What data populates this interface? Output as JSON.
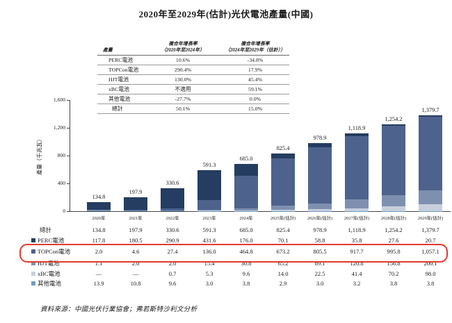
{
  "title": "2020年至2029年(估計)光伏電池產量(中國)",
  "cagr_table": {
    "col_headers": [
      "產量",
      "複合年增長率\n（2020年至2024年）",
      "複合年增長率\n（2024年至2029年（估計））"
    ],
    "rows": [
      {
        "label": "PERC電池",
        "cagr1": "10.6%",
        "cagr2": "-34.8%"
      },
      {
        "label": "TOPCon電池",
        "cagr1": "290.4%",
        "cagr2": "17.9%"
      },
      {
        "label": "HJT電池",
        "cagr1": "130.0%",
        "cagr2": "45.4%"
      },
      {
        "label": "xBC電池",
        "cagr1": "不適用",
        "cagr2": "59.1%"
      },
      {
        "label": "其他電池",
        "cagr1": "-27.7%",
        "cagr2": "0.0%"
      },
      {
        "label": "總計",
        "cagr1": "50.1%",
        "cagr2": "15.0%"
      }
    ]
  },
  "chart_data": {
    "type": "bar",
    "stacked": true,
    "title": "2020年至2029年(估計)光伏電池產量(中國)",
    "xlabel": "",
    "ylabel": "產量（千兆瓦）",
    "ylim": [
      0,
      1600
    ],
    "y_ticks": [
      "0",
      "400",
      "800",
      "1,200",
      "1,600"
    ],
    "grid": false,
    "legend_position": "bottom-table",
    "categories": [
      "2020年",
      "2021年",
      "2022年",
      "2023年",
      "2024年",
      "2025年(估計)",
      "2026年(估計)",
      "2027年(估計)",
      "2028年(估計)",
      "2029年(估計)"
    ],
    "totals": [
      134.8,
      197.9,
      330.6,
      591.3,
      685.0,
      825.4,
      978.9,
      1118.9,
      1254.2,
      1379.7
    ],
    "total_labels": [
      "134.8",
      "197.9",
      "330.6",
      "591.3",
      "685.0",
      "825.4",
      "978.9",
      "1,118.9",
      "1,254.2",
      "1,379.7"
    ],
    "series": [
      {
        "name": "PERC電池",
        "color": "#243d60",
        "values": [
          117.8,
          180.5,
          290.9,
          431.6,
          176.0,
          70.1,
          58.8,
          35.8,
          27.6,
          20.7
        ]
      },
      {
        "name": "TOPCon電池",
        "color": "#4d628c",
        "values": [
          2.0,
          4.6,
          27.4,
          136.0,
          464.8,
          673.2,
          805.5,
          917.7,
          995.8,
          1057.1
        ]
      },
      {
        "name": "HJT電池",
        "color": "#7e90b0",
        "values": [
          1.1,
          2.0,
          2.0,
          15.4,
          30.8,
          65.2,
          89.1,
          120.8,
          156.8,
          200.1
        ]
      },
      {
        "name": "xBC電池",
        "color": "#c7cfdc",
        "values": [
          0,
          0,
          0.7,
          5.3,
          9.6,
          14.0,
          22.5,
          41.4,
          70.2,
          98.0
        ]
      },
      {
        "name": "其他電池",
        "color": "#6e9bc5",
        "values": [
          13.9,
          10.8,
          9.6,
          3.0,
          3.8,
          2.9,
          3.0,
          3.2,
          3.8,
          3.8
        ]
      }
    ]
  },
  "data_table": {
    "rows": [
      {
        "label": "總計",
        "swatch": null,
        "highlight": false,
        "values": [
          "134.8",
          "197.9",
          "330.6",
          "591.3",
          "685.0",
          "825.4",
          "978.9",
          "1,118.9",
          "1,254.2",
          "1,379.7"
        ]
      },
      {
        "label": "PERC電池",
        "swatch": "#243d60",
        "highlight": false,
        "values": [
          "117.8",
          "180.5",
          "290.9",
          "431.6",
          "176.0",
          "70.1",
          "58.8",
          "35.8",
          "27.6",
          "20.7"
        ]
      },
      {
        "label": "TOPCon電池",
        "swatch": "#4d628c",
        "highlight": true,
        "values": [
          "2.0",
          "4.6",
          "27.4",
          "136.0",
          "464.8",
          "673.2",
          "805.5",
          "917.7",
          "995.8",
          "1,057.1"
        ]
      },
      {
        "label": "HJT電池",
        "swatch": "#7e90b0",
        "highlight": false,
        "values": [
          "1.1",
          "2.0",
          "2.0",
          "15.4",
          "30.8",
          "65.2",
          "89.1",
          "120.8",
          "156.8",
          "200.1"
        ]
      },
      {
        "label": "xBC電池",
        "swatch": "#c7cfdc",
        "highlight": false,
        "values": [
          "—",
          "—",
          "0.7",
          "5.3",
          "9.6",
          "14.0",
          "22.5",
          "41.4",
          "70.2",
          "98.0"
        ]
      },
      {
        "label": "其他電池",
        "swatch": "#6e9bc5",
        "highlight": false,
        "values": [
          "13.9",
          "10.8",
          "9.6",
          "3.0",
          "3.8",
          "2.9",
          "3.0",
          "3.2",
          "3.8",
          "3.8"
        ]
      }
    ]
  },
  "footer": {
    "source": "資料來源：中國光伏行業協會；弗若斯特沙利文分析"
  },
  "colors": {
    "highlight_box": "#e23b2e",
    "axis": "#444444",
    "text": "#1a1a1a"
  }
}
